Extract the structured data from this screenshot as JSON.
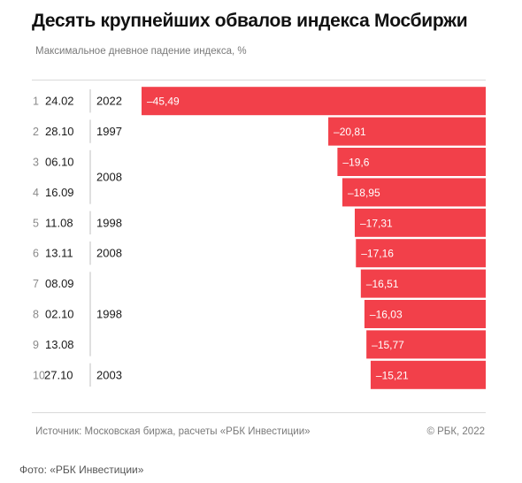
{
  "header": {
    "title": "Десять крупнейших обвалов индекса Мосбиржи",
    "subtitle": "Максимальное дневное падение индекса, %"
  },
  "footer": {
    "source": "Источник:  Московская биржа, расчеты «РБК Инвестиции»",
    "copyright": "© РБК, 2022",
    "photo_credit": "Фото: «РБК Инвестиции»"
  },
  "colors": {
    "bar": "#f2404a",
    "bar_label": "#ffffff",
    "text": "#1a1a1a",
    "muted": "#8a8a8a"
  },
  "chart_data": {
    "type": "bar",
    "orientation": "horizontal",
    "title": "Десять крупнейших обвалов индекса Мосбиржи",
    "subtitle": "Максимальное дневное падение индекса, %",
    "ranks": [
      "1",
      "2",
      "3",
      "4",
      "5",
      "6",
      "7",
      "8",
      "9",
      "10"
    ],
    "categories": [
      "24.02",
      "28.10",
      "06.10",
      "16.09",
      "11.08",
      "13.11",
      "08.09",
      "02.10",
      "13.08",
      "27.10"
    ],
    "values": [
      -45.49,
      -20.81,
      -19.6,
      -18.95,
      -17.31,
      -17.16,
      -16.51,
      -16.03,
      -15.77,
      -15.21
    ],
    "value_labels": [
      "–45,49",
      "–20,81",
      "–19,6",
      "–18,95",
      "–17,31",
      "–17,16",
      "–16,51",
      "–16,03",
      "–15,77",
      "–15,21"
    ],
    "year_groups": [
      {
        "label": "2022",
        "rows": [
          0
        ]
      },
      {
        "label": "1997",
        "rows": [
          1
        ]
      },
      {
        "label": "2008",
        "rows": [
          2,
          3
        ]
      },
      {
        "label": "1998",
        "rows": [
          4
        ]
      },
      {
        "label": "2008",
        "rows": [
          5
        ]
      },
      {
        "label": "1998",
        "rows": [
          6,
          7,
          8
        ]
      },
      {
        "label": "2003",
        "rows": [
          9
        ]
      }
    ],
    "xlim": [
      -45.49,
      0
    ],
    "grid": false,
    "legend": "none"
  }
}
